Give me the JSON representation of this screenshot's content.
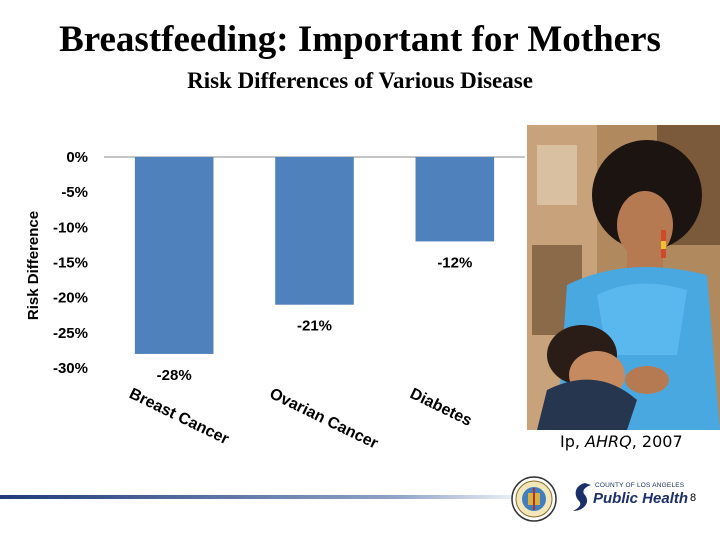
{
  "header": {
    "title": "Breastfeeding: Important for Mothers",
    "subtitle": "Risk Differences of Various Disease"
  },
  "chart_data": {
    "type": "bar",
    "categories": [
      "Breast Cancer",
      "Ovarian Cancer",
      "Diabetes"
    ],
    "values": [
      -28,
      -21,
      -12
    ],
    "data_labels": [
      "-28%",
      "-21%",
      "-12%"
    ],
    "ylabel": "Risk Difference",
    "ylim": [
      -30,
      0
    ],
    "yticks": [
      0,
      -5,
      -10,
      -15,
      -20,
      -25,
      -30
    ],
    "ytick_labels": [
      "0%",
      "-5%",
      "-10%",
      "-15%",
      "-20%",
      "-25%",
      "-30%"
    ],
    "bar_color": "#4f81bd",
    "grid": false,
    "legend": "none"
  },
  "citation": {
    "author": "Ip, ",
    "source": "AHRQ",
    "year": ", 2007"
  },
  "footer": {
    "logo_small": "COUNTY OF LOS ANGELES",
    "logo_big": "Public Health",
    "page_number": "8"
  },
  "colors": {
    "footer_bar_start": "#1f3a78",
    "footer_bar_end": "#ffffff",
    "logo_navy": "#1b2f6b"
  }
}
